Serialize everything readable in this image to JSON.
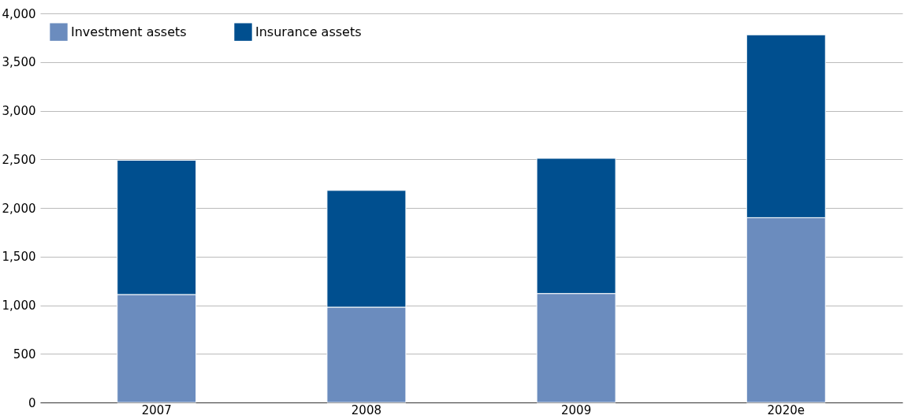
{
  "chart_data": {
    "type": "bar",
    "stacked": true,
    "categories": [
      "2007",
      "2008",
      "2009",
      "2020e"
    ],
    "series": [
      {
        "name": "Investment assets",
        "color": "#6b8cbe",
        "values": [
          1110,
          980,
          1120,
          1900
        ]
      },
      {
        "name": "Insurance assets",
        "color": "#004f8f",
        "values": [
          1380,
          1200,
          1390,
          1880
        ]
      }
    ],
    "ylim": [
      0,
      4000
    ],
    "yticks": [
      0,
      500,
      {
        "value": 1000,
        "label": "1,000"
      },
      {
        "value": 1500,
        "label": "1,500"
      },
      {
        "value": 2000,
        "label": "2,000"
      },
      {
        "value": 2500,
        "label": "2,500"
      },
      {
        "value": 3000,
        "label": "3,000"
      },
      {
        "value": 3500,
        "label": "3,500"
      },
      {
        "value": 4000,
        "label": "4,000"
      }
    ],
    "grid": "y",
    "legend": "top left"
  }
}
